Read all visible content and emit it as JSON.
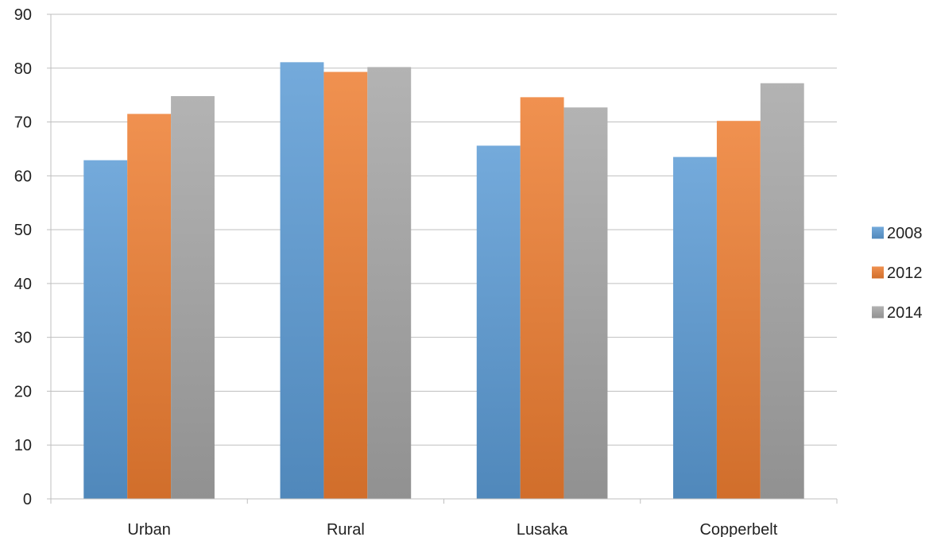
{
  "chart_data": {
    "type": "bar",
    "title": "",
    "xlabel": "",
    "ylabel": "",
    "categories": [
      "Urban",
      "Rural",
      "Lusaka",
      "Copperbelt"
    ],
    "series": [
      {
        "name": "2008",
        "values": [
          62.9,
          81.1,
          65.6,
          63.5
        ],
        "color": "#5B9BD5"
      },
      {
        "name": "2012",
        "values": [
          71.5,
          79.3,
          74.6,
          70.2
        ],
        "color": "#ED7D31"
      },
      {
        "name": "2014",
        "values": [
          74.8,
          80.2,
          72.7,
          77.2
        ],
        "color": "#A5A5A5"
      }
    ],
    "ylim": [
      0,
      90
    ],
    "yticks": [
      0,
      10,
      20,
      30,
      40,
      50,
      60,
      70,
      80,
      90
    ],
    "grid": true,
    "legend_position": "right"
  }
}
